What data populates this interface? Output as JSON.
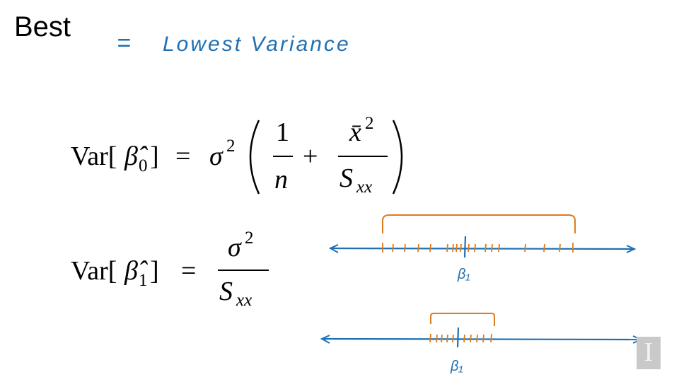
{
  "slide": {
    "heading": "Best",
    "annotation": {
      "equals": "=",
      "text": "Lowest Variance",
      "color": "#1f6fb2"
    },
    "formula_1": {
      "lhs_prefix": "Var[",
      "lhs_symbol": "β̂",
      "lhs_subscript": "0",
      "lhs_suffix": "]",
      "equals": "=",
      "sigma": "σ",
      "sigma_exp": "2",
      "numerator_1": "1",
      "denominator_1": "n",
      "plus": "+",
      "numerator_2": "x̄",
      "numerator_2_exp": "2",
      "denominator_2": "S",
      "denominator_2_sub": "xx"
    },
    "formula_2": {
      "lhs_prefix": "Var[",
      "lhs_symbol": "β̂",
      "lhs_subscript": "1",
      "lhs_suffix": "]",
      "equals": "=",
      "numerator": "σ",
      "numerator_exp": "2",
      "denominator": "S",
      "denominator_sub": "xx"
    },
    "number_lines": [
      {
        "label": "β₁",
        "line_color": "#1f6fb2",
        "bracket_color": "#e07b1a"
      },
      {
        "label": "β₁",
        "line_color": "#1f6fb2",
        "bracket_color": "#e07b1a"
      }
    ],
    "logo": {
      "glyph": "I",
      "color": "#c9c9c9"
    }
  }
}
